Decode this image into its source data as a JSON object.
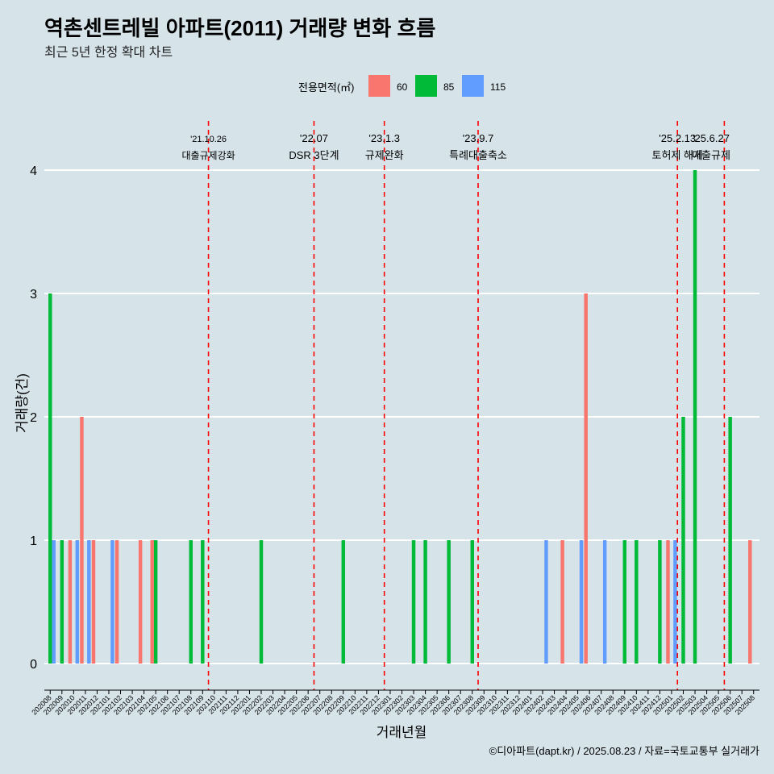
{
  "title": "역촌센트레빌 아파트(2011) 거래량 변화 흐름",
  "subtitle": "최근 5년 한정 확대 차트",
  "caption": "©디아파트(dapt.kr) / 2025.08.23 / 자료=국토교통부 실거래가",
  "colors": {
    "60": "#f8766d",
    "85": "#00ba38",
    "115": "#619cff",
    "background": "#d6e4ea",
    "event_line": "#ff0000"
  },
  "chart_data": {
    "type": "bar",
    "title": "역촌센트레빌 아파트(2011) 거래량 변화 흐름",
    "xlabel": "거래년월",
    "ylabel": "거래량(건)",
    "ylim": [
      0,
      4
    ],
    "yticks": [
      0,
      1,
      2,
      3,
      4
    ],
    "legend_title": "전용면적(㎡)",
    "categories": [
      "202008",
      "202009",
      "202010",
      "202011",
      "202012",
      "202101",
      "202102",
      "202103",
      "202104",
      "202105",
      "202106",
      "202107",
      "202108",
      "202109",
      "202110",
      "202111",
      "202112",
      "202201",
      "202202",
      "202203",
      "202204",
      "202205",
      "202206",
      "202207",
      "202208",
      "202209",
      "202210",
      "202211",
      "202212",
      "202301",
      "202302",
      "202303",
      "202304",
      "202305",
      "202306",
      "202307",
      "202308",
      "202309",
      "202310",
      "202311",
      "202312",
      "202401",
      "202402",
      "202403",
      "202404",
      "202405",
      "202406",
      "202407",
      "202408",
      "202409",
      "202410",
      "202411",
      "202412",
      "202501",
      "202502",
      "202503",
      "202504",
      "202505",
      "202506",
      "202507",
      "202508"
    ],
    "series": [
      {
        "name": "60",
        "values": [
          0,
          0,
          1,
          2,
          1,
          0,
          1,
          0,
          1,
          1,
          0,
          0,
          0,
          0,
          0,
          0,
          0,
          0,
          0,
          0,
          0,
          0,
          0,
          0,
          0,
          0,
          0,
          0,
          0,
          0,
          0,
          0,
          0,
          0,
          0,
          0,
          0,
          0,
          0,
          0,
          0,
          0,
          0,
          0,
          1,
          0,
          3,
          0,
          0,
          0,
          0,
          0,
          0,
          1,
          0,
          0,
          0,
          0,
          0,
          0,
          1
        ]
      },
      {
        "name": "85",
        "values": [
          3,
          1,
          0,
          0,
          0,
          0,
          0,
          0,
          0,
          1,
          0,
          0,
          1,
          1,
          0,
          0,
          0,
          0,
          1,
          0,
          0,
          0,
          0,
          0,
          0,
          1,
          0,
          0,
          0,
          0,
          0,
          1,
          1,
          0,
          1,
          0,
          1,
          0,
          0,
          0,
          0,
          0,
          0,
          0,
          0,
          0,
          0,
          0,
          0,
          1,
          1,
          0,
          1,
          0,
          2,
          4,
          0,
          0,
          2,
          0,
          0
        ]
      },
      {
        "name": "115",
        "values": [
          1,
          0,
          1,
          1,
          0,
          1,
          0,
          0,
          0,
          0,
          0,
          0,
          0,
          0,
          0,
          0,
          0,
          0,
          0,
          0,
          0,
          0,
          0,
          0,
          0,
          0,
          0,
          0,
          0,
          0,
          0,
          0,
          0,
          0,
          0,
          0,
          0,
          0,
          0,
          0,
          0,
          0,
          1,
          0,
          0,
          1,
          0,
          1,
          0,
          0,
          0,
          0,
          0,
          1,
          0,
          0,
          0,
          0,
          0,
          0,
          0
        ]
      }
    ],
    "events": [
      {
        "date": "'21.10.26",
        "label": "대출규제강화",
        "at": "202110"
      },
      {
        "date": "'22.07",
        "label": "DSR 3단계",
        "at": "202207"
      },
      {
        "date": "'23.1.3",
        "label": "규제완화",
        "at": "202301"
      },
      {
        "date": "'23.9.7",
        "label": "특례대출축소",
        "at": "202309"
      },
      {
        "date": "'25.2.13",
        "label": "토허제 해제",
        "at": "202502"
      },
      {
        "date": "'25.6.27",
        "label": "대출규제",
        "at": "202506"
      }
    ]
  }
}
